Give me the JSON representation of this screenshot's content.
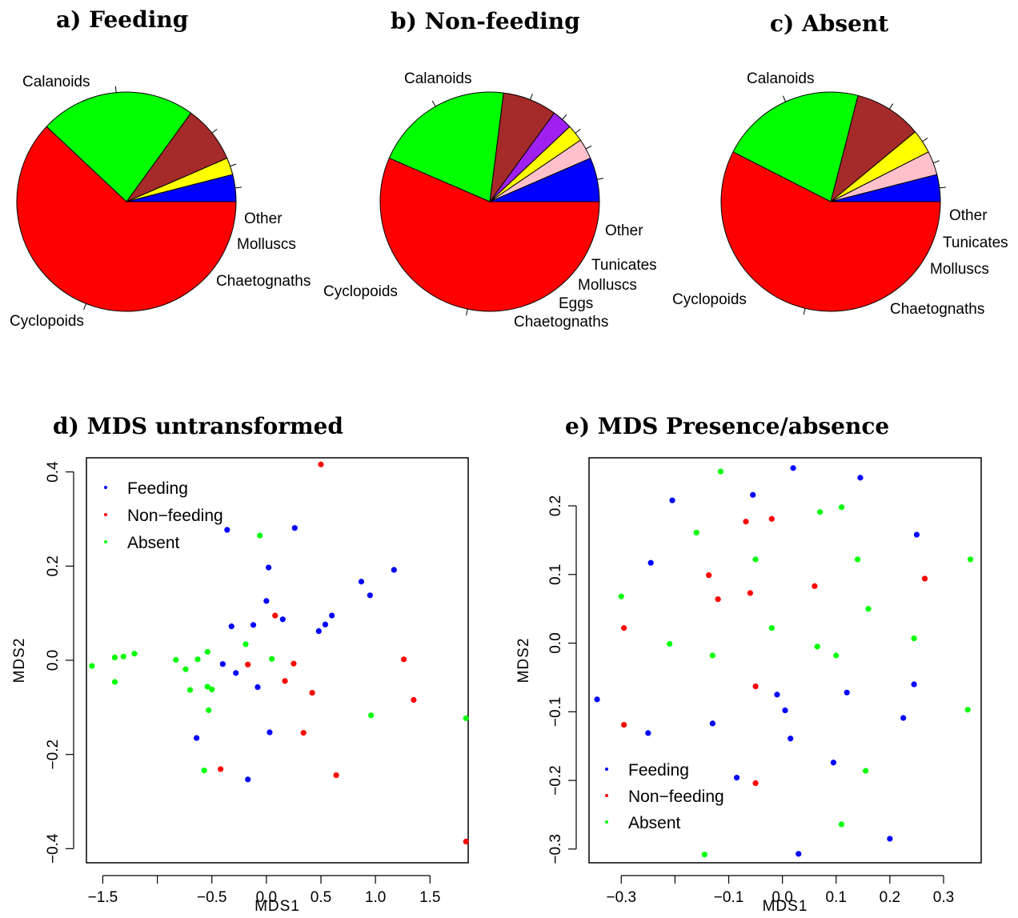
{
  "chart_data": [
    {
      "type": "pie",
      "title": "a) Feeding",
      "slices": [
        {
          "label": "Other",
          "value": 0.04,
          "color": "#0000FF"
        },
        {
          "label": "Molluscs",
          "value": 0.025,
          "color": "#FFFF00"
        },
        {
          "label": "Chaetognaths",
          "value": 0.085,
          "color": "#A52A2A"
        },
        {
          "label": "Cyclopoids",
          "value": 0.23,
          "color": "#00FF00"
        },
        {
          "label": "Calanoids",
          "value": 0.62,
          "color": "#FF0000"
        }
      ]
    },
    {
      "type": "pie",
      "title": "b) Non-feeding",
      "slices": [
        {
          "label": "Other",
          "value": 0.065,
          "color": "#0000FF"
        },
        {
          "label": "Tunicates",
          "value": 0.03,
          "color": "#FFC0CB"
        },
        {
          "label": "Molluscs",
          "value": 0.025,
          "color": "#FFFF00"
        },
        {
          "label": "Eggs",
          "value": 0.03,
          "color": "#A020F0"
        },
        {
          "label": "Chaetognaths",
          "value": 0.08,
          "color": "#A52A2A"
        },
        {
          "label": "Cyclopoids",
          "value": 0.205,
          "color": "#00FF00"
        },
        {
          "label": "Calanoids",
          "value": 0.565,
          "color": "#FF0000"
        }
      ]
    },
    {
      "type": "pie",
      "title": "c) Absent",
      "slices": [
        {
          "label": "Other",
          "value": 0.04,
          "color": "#0000FF"
        },
        {
          "label": "Tunicates",
          "value": 0.035,
          "color": "#FFC0CB"
        },
        {
          "label": "Molluscs",
          "value": 0.035,
          "color": "#FFFF00"
        },
        {
          "label": "Chaetognaths",
          "value": 0.1,
          "color": "#A52A2A"
        },
        {
          "label": "Cyclopoids",
          "value": 0.215,
          "color": "#00FF00"
        },
        {
          "label": "Calanoids",
          "value": 0.575,
          "color": "#FF0000"
        }
      ]
    },
    {
      "type": "scatter",
      "title": "d) MDS untransformed",
      "xlabel": "MDS1",
      "ylabel": "MDS2",
      "xlim": [
        -1.65,
        1.85
      ],
      "ylim": [
        -0.43,
        0.43
      ],
      "x_ticks": [
        {
          "value": -1.5,
          "label": "-1.5"
        },
        {
          "value": -1.0,
          "label": ""
        },
        {
          "value": -0.5,
          "label": "-0.5"
        },
        {
          "value": 0.0,
          "label": "0.0"
        },
        {
          "value": 0.5,
          "label": "0.5"
        },
        {
          "value": 1.0,
          "label": "1.0"
        },
        {
          "value": 1.5,
          "label": "1.5"
        }
      ],
      "y_ticks": [
        {
          "value": -0.4,
          "label": "-0.4"
        },
        {
          "value": -0.2,
          "label": "-0.2"
        },
        {
          "value": 0.0,
          "label": "0.0"
        },
        {
          "value": 0.2,
          "label": "0.2"
        },
        {
          "value": 0.4,
          "label": "0.4"
        }
      ],
      "legend_position": "top-left",
      "series": [
        {
          "name": "Feeding",
          "color": "#0000FF",
          "points": [
            [
              -0.36,
              0.277
            ],
            [
              0.26,
              0.281
            ],
            [
              0.02,
              0.197
            ],
            [
              -0.32,
              0.072
            ],
            [
              -0.12,
              0.075
            ],
            [
              0.0,
              0.126
            ],
            [
              0.15,
              0.087
            ],
            [
              1.17,
              0.192
            ],
            [
              0.87,
              0.167
            ],
            [
              0.95,
              0.138
            ],
            [
              0.6,
              0.095
            ],
            [
              0.54,
              0.076
            ],
            [
              0.48,
              0.062
            ],
            [
              -0.4,
              -0.008
            ],
            [
              -0.28,
              -0.027
            ],
            [
              -0.08,
              -0.057
            ],
            [
              0.03,
              -0.153
            ],
            [
              -0.64,
              -0.165
            ],
            [
              -0.17,
              -0.253
            ]
          ]
        },
        {
          "name": "Non-feeding",
          "color": "#FF0000",
          "points": [
            [
              0.5,
              0.416
            ],
            [
              0.08,
              0.095
            ],
            [
              1.26,
              0.002
            ],
            [
              0.25,
              -0.007
            ],
            [
              -0.17,
              -0.009
            ],
            [
              0.17,
              -0.044
            ],
            [
              0.42,
              -0.069
            ],
            [
              1.35,
              -0.084
            ],
            [
              0.34,
              -0.154
            ],
            [
              -0.42,
              -0.231
            ],
            [
              0.64,
              -0.244
            ],
            [
              1.83,
              -0.385
            ]
          ]
        },
        {
          "name": "Absent",
          "color": "#00FF00",
          "points": [
            [
              -0.06,
              0.265
            ],
            [
              -0.19,
              0.034
            ],
            [
              0.05,
              0.003
            ],
            [
              -0.54,
              0.018
            ],
            [
              -0.63,
              0.002
            ],
            [
              -0.83,
              0.001
            ],
            [
              -0.74,
              -0.019
            ],
            [
              -1.21,
              0.014
            ],
            [
              -1.31,
              0.008
            ],
            [
              -1.39,
              0.006
            ],
            [
              -1.6,
              -0.012
            ],
            [
              -1.39,
              -0.046
            ],
            [
              -0.7,
              -0.063
            ],
            [
              -0.54,
              -0.056
            ],
            [
              -0.5,
              -0.062
            ],
            [
              -0.53,
              -0.106
            ],
            [
              0.96,
              -0.117
            ],
            [
              1.83,
              -0.123
            ],
            [
              -0.57,
              -0.234
            ]
          ]
        }
      ]
    },
    {
      "type": "scatter",
      "title": "e) MDS Presence/absence",
      "xlabel": "MDS1",
      "ylabel": "MDS2",
      "xlim": [
        -0.36,
        0.37
      ],
      "ylim": [
        -0.32,
        0.27
      ],
      "x_ticks": [
        {
          "value": -0.3,
          "label": "-0.3"
        },
        {
          "value": -0.2,
          "label": ""
        },
        {
          "value": -0.1,
          "label": "-0.1"
        },
        {
          "value": 0.0,
          "label": "0.0"
        },
        {
          "value": 0.1,
          "label": "0.1"
        },
        {
          "value": 0.2,
          "label": "0.2"
        },
        {
          "value": 0.3,
          "label": "0.3"
        }
      ],
      "y_ticks": [
        {
          "value": -0.3,
          "label": "-0.3"
        },
        {
          "value": -0.2,
          "label": "-0.2"
        },
        {
          "value": -0.1,
          "label": "-0.1"
        },
        {
          "value": 0.0,
          "label": "0.0"
        },
        {
          "value": 0.1,
          "label": "0.1"
        },
        {
          "value": 0.2,
          "label": "0.2"
        }
      ],
      "legend_position": "bottom-left",
      "series": [
        {
          "name": "Feeding",
          "color": "#0000FF",
          "points": [
            [
              0.02,
              0.255
            ],
            [
              0.145,
              0.241
            ],
            [
              -0.055,
              0.216
            ],
            [
              -0.205,
              0.208
            ],
            [
              0.25,
              0.158
            ],
            [
              -0.245,
              0.117
            ],
            [
              -0.345,
              -0.082
            ],
            [
              -0.01,
              -0.075
            ],
            [
              0.005,
              -0.098
            ],
            [
              0.12,
              -0.072
            ],
            [
              0.245,
              -0.06
            ],
            [
              -0.13,
              -0.117
            ],
            [
              0.225,
              -0.109
            ],
            [
              -0.25,
              -0.131
            ],
            [
              0.015,
              -0.139
            ],
            [
              0.095,
              -0.174
            ],
            [
              -0.085,
              -0.196
            ],
            [
              0.2,
              -0.285
            ],
            [
              0.03,
              -0.307
            ]
          ]
        },
        {
          "name": "Non-feeding",
          "color": "#FF0000",
          "points": [
            [
              -0.02,
              0.181
            ],
            [
              -0.068,
              0.177
            ],
            [
              -0.137,
              0.099
            ],
            [
              -0.06,
              0.073
            ],
            [
              0.06,
              0.083
            ],
            [
              0.265,
              0.094
            ],
            [
              -0.12,
              0.064
            ],
            [
              -0.295,
              0.022
            ],
            [
              -0.05,
              -0.063
            ],
            [
              -0.295,
              -0.119
            ],
            [
              -0.05,
              -0.204
            ]
          ]
        },
        {
          "name": "Absent",
          "color": "#00FF00",
          "points": [
            [
              -0.115,
              0.25
            ],
            [
              0.11,
              0.198
            ],
            [
              0.07,
              0.191
            ],
            [
              -0.16,
              0.161
            ],
            [
              -0.05,
              0.122
            ],
            [
              0.14,
              0.122
            ],
            [
              0.35,
              0.122
            ],
            [
              -0.3,
              0.068
            ],
            [
              0.16,
              0.05
            ],
            [
              -0.02,
              0.022
            ],
            [
              -0.21,
              -0.001
            ],
            [
              0.065,
              -0.005
            ],
            [
              0.245,
              0.007
            ],
            [
              -0.13,
              -0.018
            ],
            [
              0.1,
              -0.018
            ],
            [
              0.345,
              -0.097
            ],
            [
              0.155,
              -0.186
            ],
            [
              0.11,
              -0.264
            ],
            [
              -0.145,
              -0.308
            ]
          ]
        }
      ]
    }
  ]
}
